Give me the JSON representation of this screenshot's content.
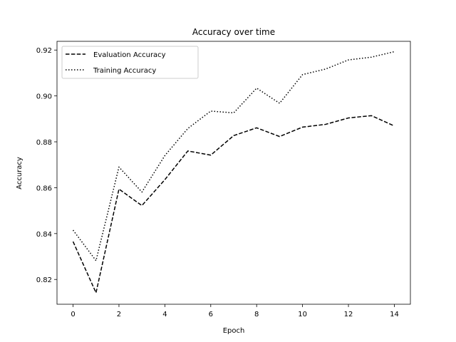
{
  "chart_data": {
    "type": "line",
    "title": "Accuracy over time",
    "xlabel": "Epoch",
    "ylabel": "Accuracy",
    "xlim": [
      -0.7,
      14.7
    ],
    "ylim": [
      0.8092,
      0.9238
    ],
    "xticks": [
      0,
      2,
      4,
      6,
      8,
      10,
      12,
      14
    ],
    "yticks": [
      0.82,
      0.84,
      0.86,
      0.88,
      0.9,
      0.92
    ],
    "grid": false,
    "legend_position": "top-left",
    "x": [
      0,
      1,
      2,
      3,
      4,
      5,
      6,
      7,
      8,
      9,
      10,
      11,
      12,
      13,
      14
    ],
    "series": [
      {
        "name": "Evaluation Accuracy",
        "line_style": "dashed",
        "color": "#000000",
        "values": [
          0.8365,
          0.8142,
          0.8594,
          0.8522,
          0.8635,
          0.876,
          0.8742,
          0.8827,
          0.8861,
          0.8823,
          0.8864,
          0.8876,
          0.8904,
          0.8914,
          0.8869
        ]
      },
      {
        "name": "Training Accuracy",
        "line_style": "dotted",
        "color": "#000000",
        "values": [
          0.8415,
          0.8282,
          0.869,
          0.8581,
          0.874,
          0.8858,
          0.8934,
          0.8926,
          0.9034,
          0.8968,
          0.9093,
          0.9117,
          0.9157,
          0.9169,
          0.9193
        ]
      }
    ]
  }
}
